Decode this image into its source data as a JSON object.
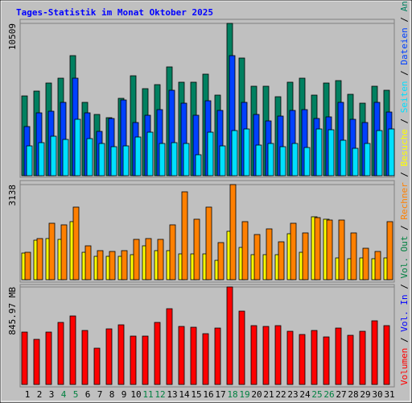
{
  "chart_data": [
    {
      "type": "bar",
      "title": "Tages-Statistik im Monat Oktober 2025",
      "ylim": [
        0,
        10509
      ],
      "yticks": [
        10509
      ],
      "series": [
        {
          "name": "Anfragen",
          "color": "#008060",
          "values": [
            5504,
            5838,
            6394,
            6728,
            8284,
            5060,
            4226,
            4003,
            5338,
            6894,
            6005,
            6283,
            7506,
            6450,
            6450,
            7006,
            5560,
            10509,
            8118,
            6172,
            6172,
            5449,
            6450,
            6728,
            5560,
            6394,
            6561,
            5616,
            5004,
            6172,
            5894
          ]
        },
        {
          "name": "Dateien",
          "color": "#0040ff",
          "values": [
            3392,
            4337,
            4448,
            5060,
            6728,
            4337,
            3058,
            3948,
            5226,
            3670,
            4170,
            4559,
            5894,
            5004,
            4170,
            5171,
            4504,
            8284,
            5060,
            4226,
            3781,
            4114,
            4504,
            4559,
            3948,
            4059,
            5060,
            3892,
            3670,
            5060,
            4392
          ]
        },
        {
          "name": "Seiten",
          "color": "#00e0ff",
          "values": [
            2057,
            2280,
            2724,
            2502,
            3892,
            2558,
            2224,
            2002,
            2057,
            2669,
            3002,
            2224,
            2280,
            2224,
            1446,
            3002,
            2057,
            3114,
            3225,
            2113,
            2224,
            2002,
            2224,
            1946,
            3225,
            3169,
            2446,
            1890,
            2224,
            3114,
            3225
          ]
        }
      ]
    },
    {
      "type": "bar",
      "ylim": [
        0,
        3138
      ],
      "yticks": [
        3138
      ],
      "series": [
        {
          "name": "Besuche",
          "color": "#ffff00",
          "values": [
            878,
            1303,
            1357,
            1330,
            1915,
            904,
            771,
            771,
            771,
            825,
            1117,
            958,
            958,
            851,
            851,
            851,
            638,
            1596,
            1064,
            825,
            825,
            825,
            1516,
            904,
            2075,
            1995,
            718,
            692,
            718,
            692,
            718
          ]
        },
        {
          "name": "Rechner",
          "color": "#ff8000",
          "values": [
            904,
            1357,
            1862,
            1809,
            2394,
            1117,
            958,
            931,
            958,
            1330,
            1357,
            1330,
            1809,
            2899,
            1995,
            2394,
            1224,
            3138,
            1915,
            1490,
            1676,
            1250,
            1862,
            1543,
            2048,
            1968,
            1968,
            1543,
            1037,
            931,
            1915
          ]
        }
      ]
    },
    {
      "type": "bar",
      "ylim": [
        0,
        845.97
      ],
      "yticks": [
        {
          "value": 845.97,
          "label": "845.97 MB"
        }
      ],
      "categories": [
        "1",
        "2",
        "3",
        "4",
        "5",
        "6",
        "7",
        "8",
        "9",
        "10",
        "11",
        "12",
        "13",
        "14",
        "15",
        "16",
        "17",
        "18",
        "19",
        "20",
        "21",
        "22",
        "23",
        "24",
        "25",
        "26",
        "27",
        "28",
        "29",
        "30",
        "31"
      ],
      "category_colors": [
        "#000000",
        "#000000",
        "#000000",
        "#008040",
        "#008040",
        "#000000",
        "#000000",
        "#000000",
        "#000000",
        "#000000",
        "#008040",
        "#008040",
        "#000000",
        "#000000",
        "#000000",
        "#000000",
        "#000000",
        "#008040",
        "#008040",
        "#000000",
        "#000000",
        "#000000",
        "#000000",
        "#000000",
        "#008040",
        "#008040",
        "#000000",
        "#000000",
        "#000000",
        "#000000",
        "#000000"
      ],
      "series": [
        {
          "name": "Volumen",
          "color": "#ff0000",
          "values": [
            454.4,
            391.4,
            454.4,
            538.2,
            594.2,
            468.3,
            314.6,
            482.3,
            517.3,
            419.4,
            419.4,
            538.2,
            657.1,
            503.3,
            496.3,
            440.4,
            489.3,
            845.97,
            636.1,
            510.3,
            503.3,
            510.3,
            461.3,
            433.4,
            468.3,
            412.4,
            489.3,
            426.4,
            461.3,
            552.2,
            510.3
          ]
        }
      ]
    }
  ],
  "legend": [
    {
      "name": "Volumen",
      "color": "#ff0000"
    },
    {
      "name": "Vol. In",
      "color": "#0000ff"
    },
    {
      "name": "Vol. Out",
      "color": "#008040"
    },
    {
      "name": "Rechner",
      "color": "#ff8000"
    },
    {
      "name": "Besuche",
      "color": "#ffff00"
    },
    {
      "name": "Seiten",
      "color": "#00e0ff"
    },
    {
      "name": "Dateien",
      "color": "#0040ff"
    },
    {
      "name": "Anfragen",
      "color": "#008060"
    }
  ]
}
